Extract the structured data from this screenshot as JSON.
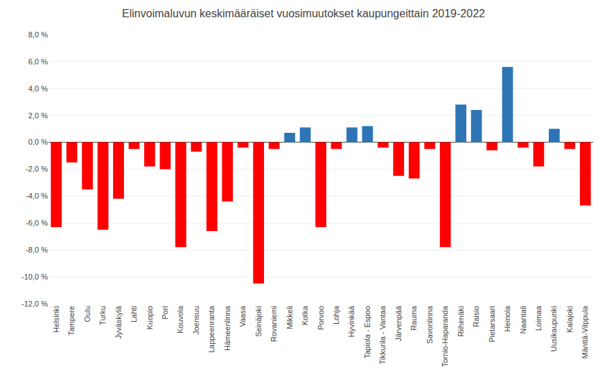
{
  "chart_data": {
    "type": "bar",
    "title": "Elinvoimaluvun keskimääräiset vuosimuutokset kaupungeittain 2019-2022",
    "categories": [
      "Helsinki",
      "Tampere",
      "Oulu",
      "Turku",
      "Jyväskylä",
      "Lahti",
      "Kuopio",
      "Pori",
      "Kouvola",
      "Joensuu",
      "Lappeenranta",
      "Hämeenlinna",
      "Vaasa",
      "Seinäjoki",
      "Rovaniemi",
      "Mikkeli",
      "Kotka",
      "Porvoo",
      "Lohja",
      "Hyvinkää",
      "Tapiola - Espoo",
      "Tikkurila - Vantaa",
      "Järvenpää",
      "Rauma",
      "Savonlinna",
      "Tornio-Haparanda",
      "Riihimäki",
      "Raisio",
      "Pietarsaari",
      "Heinola",
      "Naantali",
      "Loimaa",
      "Uusikaupunki",
      "Kalajoki",
      "Mänttä-Vilppula"
    ],
    "values": [
      -6.3,
      -1.5,
      -3.5,
      -6.5,
      -4.2,
      -0.5,
      -1.8,
      -2.0,
      -7.8,
      -0.7,
      -6.6,
      -4.4,
      -0.4,
      -10.5,
      -0.5,
      0.7,
      1.1,
      -6.3,
      -0.5,
      1.1,
      1.2,
      -0.4,
      -2.5,
      -2.7,
      -0.5,
      -7.8,
      2.8,
      2.4,
      -0.6,
      5.6,
      -0.4,
      -1.8,
      1.0,
      -0.5,
      -4.7
    ],
    "colors": [
      "#FF0000",
      "#FF0000",
      "#FF0000",
      "#FF0000",
      "#FF0000",
      "#FF0000",
      "#FF0000",
      "#FF0000",
      "#FF0000",
      "#FF0000",
      "#FF0000",
      "#FF0000",
      "#FF0000",
      "#FF0000",
      "#FF0000",
      "#2E75B6",
      "#2E75B6",
      "#FF0000",
      "#FF0000",
      "#2E75B6",
      "#2E75B6",
      "#FF0000",
      "#FF0000",
      "#FF0000",
      "#FF0000",
      "#FF0000",
      "#2E75B6",
      "#2E75B6",
      "#FF0000",
      "#2E75B6",
      "#FF0000",
      "#FF0000",
      "#2E75B6",
      "#FF0000",
      "#FF0000"
    ],
    "ylim": [
      -12.0,
      8.0
    ],
    "yticks": [
      {
        "value": -12.0,
        "label": "-12,0 %"
      },
      {
        "value": -10.0,
        "label": "-10,0 %"
      },
      {
        "value": -8.0,
        "label": "-8,0 %"
      },
      {
        "value": -6.0,
        "label": "-6,0 %"
      },
      {
        "value": -4.0,
        "label": "-4,0 %"
      },
      {
        "value": -2.0,
        "label": "-2,0 %"
      },
      {
        "value": 0.0,
        "label": "0,0 %"
      },
      {
        "value": 2.0,
        "label": "2,0 %"
      },
      {
        "value": 4.0,
        "label": "4,0 %"
      },
      {
        "value": 6.0,
        "label": "6,0 %"
      },
      {
        "value": 8.0,
        "label": "8,0 %"
      }
    ],
    "grid": true
  }
}
